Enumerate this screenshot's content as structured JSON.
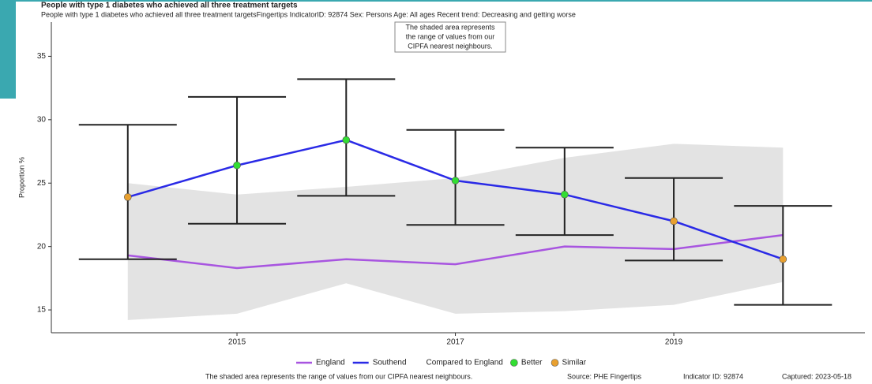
{
  "chart_data": {
    "type": "line",
    "title": "People with type 1 diabetes who achieved all three treatment targets",
    "subtitle": "People with type 1 diabetes who achieved all three treatment targetsFingertips IndicatorID: 92874 Sex: Persons Age: All ages Recent trend: Decreasing and getting worse",
    "y_label": "Proportion %",
    "annotation": [
      "The shaded area represents",
      "the range of values from our",
      "CIPFA nearest neighbours."
    ],
    "x": [
      2014,
      2015,
      2016,
      2017,
      2018,
      2019,
      2020
    ],
    "xlim": [
      2013.3,
      2020.75
    ],
    "xticks": [
      2015,
      2017,
      2019
    ],
    "ylim": [
      13.2,
      37.7
    ],
    "yticks": [
      15,
      20,
      25,
      30,
      35
    ],
    "band": {
      "color": "#e3e3e3",
      "lower": [
        14.2,
        14.7,
        17.1,
        14.7,
        14.9,
        15.4,
        17.2
      ],
      "upper": [
        25.0,
        24.1,
        24.7,
        25.4,
        27.0,
        28.1,
        27.8
      ]
    },
    "series": [
      {
        "name": "England",
        "color": "#a855e0",
        "values": [
          19.3,
          18.3,
          19.0,
          18.6,
          20.0,
          19.8,
          20.9
        ]
      },
      {
        "name": "Southend",
        "color": "#2a2ae6",
        "values": [
          23.9,
          26.4,
          28.4,
          25.2,
          24.1,
          22.0,
          19.0
        ],
        "lower": [
          19.0,
          21.8,
          24.0,
          21.7,
          20.9,
          18.9,
          15.4
        ],
        "upper": [
          29.6,
          31.8,
          33.2,
          29.2,
          27.8,
          25.4,
          23.2
        ],
        "compared": [
          1,
          0,
          0,
          0,
          0,
          1,
          1
        ]
      }
    ],
    "comparison": {
      "title": "Compared to England",
      "categories": [
        {
          "name": "Better",
          "color": "#33dd33"
        },
        {
          "name": "Similar",
          "color": "#e8a030"
        }
      ]
    },
    "footer": [
      "The shaded area represents the range of values from our CIPFA nearest neighbours.",
      "Source: PHE Fingertips",
      "Indicator ID: 92874",
      "Captured: 2023-05-18"
    ]
  }
}
